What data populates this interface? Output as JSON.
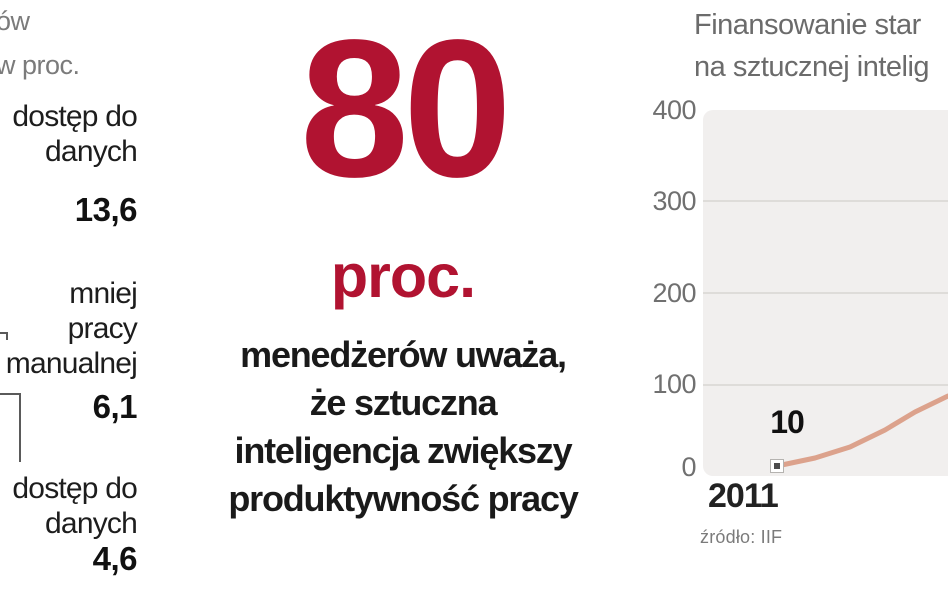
{
  "colors": {
    "accent_red": "#b11331",
    "line_salmon": "#dca28c",
    "plot_background": "#f1efee",
    "gridline": "#dedcd9",
    "text_dark": "#1a1a1a",
    "text_gray": "#6b6b6b"
  },
  "left_panel": {
    "title_fragment_line1": "ów",
    "title_fragment_line2": "w proc.",
    "items": [
      {
        "lines": [
          "dostęp do",
          "danych"
        ],
        "value": "13,6"
      },
      {
        "lines": [
          "mniej",
          "pracy",
          "manualnej"
        ],
        "value": "6,1"
      },
      {
        "lines": [
          "dostęp do",
          "danych"
        ],
        "value": "4,6"
      }
    ]
  },
  "stat": {
    "number": "80",
    "unit": "proc.",
    "lines": [
      "menedżerów uważa,",
      "że sztuczna",
      "inteligencja zwiększy",
      "produktywność pracy"
    ]
  },
  "chart": {
    "title_line1": "Finansowanie star",
    "title_line2": "na sztucznej intelig",
    "y_ticks": [
      "400",
      "300",
      "200",
      "100",
      "0"
    ],
    "x_tick": "2011",
    "point_label": "10",
    "source": "źródło: IIF",
    "line_path_points": [
      [
        777,
        466
      ],
      [
        815,
        458
      ],
      [
        850,
        447
      ],
      [
        885,
        430
      ],
      [
        915,
        412
      ],
      [
        948,
        396
      ]
    ],
    "marker_point": [
      777,
      466
    ]
  },
  "chart_data": [
    {
      "type": "table",
      "title": "w proc. (left chart fragment, clipped at left edge of image)",
      "rows": [
        {
          "label": "dostęp do danych",
          "value": 13.6
        },
        {
          "label": "mniej pracy manualnej",
          "value": 6.1
        },
        {
          "label": "dostęp do danych",
          "value": 4.6
        }
      ],
      "note": "values shown in percent; the graphic the leader lines point to is cut off"
    },
    {
      "type": "line",
      "title": "Finansowanie star… / na sztucznej intelig… (title clipped at right edge)",
      "x": [
        "2011"
      ],
      "series": [
        {
          "name": "finansowanie",
          "values": [
            10
          ]
        }
      ],
      "annotations": [
        {
          "x": "2011",
          "y": 10,
          "text": "10"
        }
      ],
      "y_ticks": [
        0,
        100,
        200,
        300,
        400
      ],
      "ylim": [
        0,
        400
      ],
      "grid": true,
      "legend": "none",
      "source": "źródło: IIF",
      "visible_curve_end_value_estimate": 88,
      "note": "curve rises from 10 in 2011 and is clipped at the right image edge near value ~88"
    }
  ]
}
